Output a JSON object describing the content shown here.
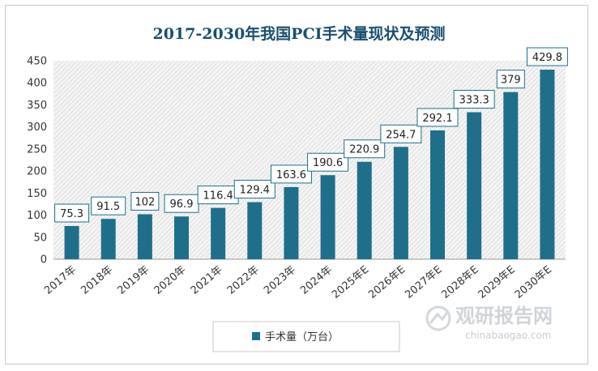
{
  "chart_data": {
    "type": "bar",
    "title": "2017-2030年我国PCI手术量现状及预测",
    "categories": [
      "2017年",
      "2018年",
      "2019年",
      "2020年",
      "2021年",
      "2022年",
      "2023年",
      "2024年",
      "2025年E",
      "2026年E",
      "2027年E",
      "2028年E",
      "2029年E",
      "2030年E"
    ],
    "series": [
      {
        "name": "手术量（万台）",
        "values": [
          75.3,
          91.5,
          102,
          96.9,
          116.4,
          129.4,
          163.6,
          190.6,
          220.9,
          254.7,
          292.1,
          333.3,
          379,
          429.8
        ]
      }
    ],
    "data_labels": [
      "75.3",
      "91.5",
      "102",
      "96.9",
      "116.4",
      "129.4",
      "163.6",
      "190.6",
      "220.9",
      "254.7",
      "292.1",
      "333.3",
      "379",
      "429.8"
    ],
    "ylim": [
      0,
      450
    ],
    "yticks": [
      "0",
      "50",
      "100",
      "150",
      "200",
      "250",
      "300",
      "350",
      "400",
      "450"
    ],
    "xlabel": "",
    "ylabel": "",
    "grid": "hatched plot background",
    "legend_position": "bottom",
    "bar_color": "#1f6f8b"
  },
  "watermark": {
    "name": "观研报告网",
    "url": "chinabaogao.com"
  }
}
